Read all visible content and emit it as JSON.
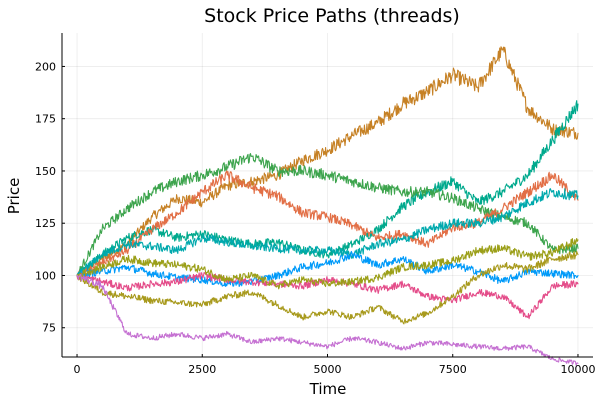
{
  "chart_data": {
    "type": "line",
    "title": "Stock Price Paths (threads)",
    "xlabel": "Time",
    "ylabel": "Price",
    "xlim": [
      -300,
      10300
    ],
    "ylim": [
      61,
      216
    ],
    "xticks": [
      0,
      2500,
      5000,
      7500,
      10000
    ],
    "xtick_labels": [
      "0",
      "2500",
      "5000",
      "7500",
      "10000"
    ],
    "yticks": [
      75,
      100,
      125,
      150,
      175,
      200
    ],
    "ytick_labels": [
      "75",
      "100",
      "125",
      "150",
      "175",
      "200"
    ],
    "grid": true,
    "legend": "none",
    "series": [
      {
        "color": "#c68125",
        "x": [
          0,
          500,
          1000,
          1500,
          2000,
          2500,
          3000,
          3500,
          4000,
          4500,
          5000,
          5500,
          6000,
          6500,
          7000,
          7500,
          8000,
          8500,
          9000,
          9500,
          10000
        ],
        "y": [
          100,
          108,
          115,
          128,
          137,
          135,
          143,
          145,
          148,
          155,
          160,
          167,
          173,
          182,
          188,
          196,
          190,
          208,
          180,
          170,
          168
        ]
      },
      {
        "color": "#00a98d",
        "x": [
          0,
          500,
          1000,
          1500,
          2000,
          2500,
          3000,
          3500,
          4000,
          4500,
          5000,
          5500,
          6000,
          6500,
          7000,
          7500,
          8000,
          8500,
          9000,
          9500,
          10000
        ],
        "y": [
          100,
          110,
          118,
          122,
          118,
          120,
          117,
          115,
          116,
          112,
          110,
          115,
          122,
          133,
          140,
          145,
          135,
          140,
          148,
          165,
          182
        ]
      },
      {
        "color": "#3da44d",
        "x": [
          0,
          500,
          1000,
          1500,
          2000,
          2500,
          3000,
          3500,
          4000,
          4500,
          5000,
          5500,
          6000,
          6500,
          7000,
          7500,
          8000,
          8500,
          9000,
          9500,
          10000
        ],
        "y": [
          100,
          122,
          132,
          140,
          145,
          148,
          152,
          157,
          150,
          150,
          148,
          145,
          142,
          140,
          140,
          137,
          132,
          128,
          125,
          112,
          113
        ]
      },
      {
        "color": "#e26f46",
        "x": [
          0,
          500,
          1000,
          1500,
          2000,
          2500,
          3000,
          3500,
          4000,
          4500,
          5000,
          5500,
          6000,
          6500,
          7000,
          7500,
          8000,
          8500,
          9000,
          9500,
          10000
        ],
        "y": [
          100,
          106,
          112,
          122,
          130,
          140,
          148,
          142,
          138,
          130,
          128,
          124,
          118,
          120,
          115,
          123,
          125,
          132,
          140,
          148,
          136
        ]
      },
      {
        "color": "#00a9ad",
        "x": [
          0,
          500,
          1000,
          1500,
          2000,
          2500,
          3000,
          3500,
          4000,
          4500,
          5000,
          5500,
          6000,
          6500,
          7000,
          7500,
          8000,
          8500,
          9000,
          9500,
          10000
        ],
        "y": [
          100,
          110,
          115,
          114,
          112,
          118,
          116,
          114,
          113,
          112,
          112,
          110,
          115,
          117,
          122,
          125,
          125,
          128,
          135,
          140,
          138
        ]
      },
      {
        "color": "#009af9",
        "x": [
          0,
          500,
          1000,
          1500,
          2000,
          2500,
          3000,
          3500,
          4000,
          4500,
          5000,
          5500,
          6000,
          6500,
          7000,
          7500,
          8000,
          8500,
          9000,
          9500,
          10000
        ],
        "y": [
          100,
          102,
          104,
          101,
          99,
          98,
          96,
          97,
          100,
          104,
          106,
          110,
          105,
          108,
          102,
          105,
          102,
          97,
          102,
          101,
          100
        ]
      },
      {
        "color": "#e44d8a",
        "x": [
          0,
          500,
          1000,
          1500,
          2000,
          2500,
          3000,
          3500,
          4000,
          4500,
          5000,
          5500,
          6000,
          6500,
          7000,
          7500,
          8000,
          8500,
          9000,
          9500,
          10000
        ],
        "y": [
          100,
          97,
          94,
          96,
          97,
          100,
          98,
          97,
          96,
          95,
          98,
          96,
          93,
          96,
          90,
          88,
          92,
          90,
          80,
          95,
          96
        ]
      },
      {
        "color": "#9b9f18",
        "x": [
          0,
          500,
          1000,
          1500,
          2000,
          2500,
          3000,
          3500,
          4000,
          4500,
          5000,
          5500,
          6000,
          6500,
          7000,
          7500,
          8000,
          8500,
          9000,
          9500,
          10000
        ],
        "y": [
          100,
          104,
          108,
          106,
          105,
          103,
          98,
          100,
          95,
          98,
          96,
          97,
          99,
          104,
          105,
          107,
          112,
          113,
          109,
          111,
          117
        ]
      },
      {
        "color": "#a89a1d",
        "x": [
          0,
          500,
          1000,
          1500,
          2000,
          2500,
          3000,
          3500,
          4000,
          4500,
          5000,
          5500,
          6000,
          6500,
          7000,
          7500,
          8000,
          8500,
          9000,
          9500,
          10000
        ],
        "y": [
          100,
          92,
          90,
          88,
          87,
          86,
          90,
          92,
          86,
          80,
          83,
          80,
          85,
          78,
          82,
          90,
          100,
          105,
          103,
          108,
          110
        ]
      },
      {
        "color": "#c571d2",
        "x": [
          0,
          500,
          1000,
          1500,
          2000,
          2500,
          3000,
          3500,
          4000,
          4500,
          5000,
          5500,
          6000,
          6500,
          7000,
          7500,
          8000,
          8500,
          9000,
          9500,
          10000
        ],
        "y": [
          100,
          95,
          72,
          70,
          72,
          70,
          72,
          68,
          70,
          68,
          66,
          70,
          68,
          65,
          68,
          67,
          66,
          65,
          66,
          60,
          58
        ]
      }
    ]
  }
}
